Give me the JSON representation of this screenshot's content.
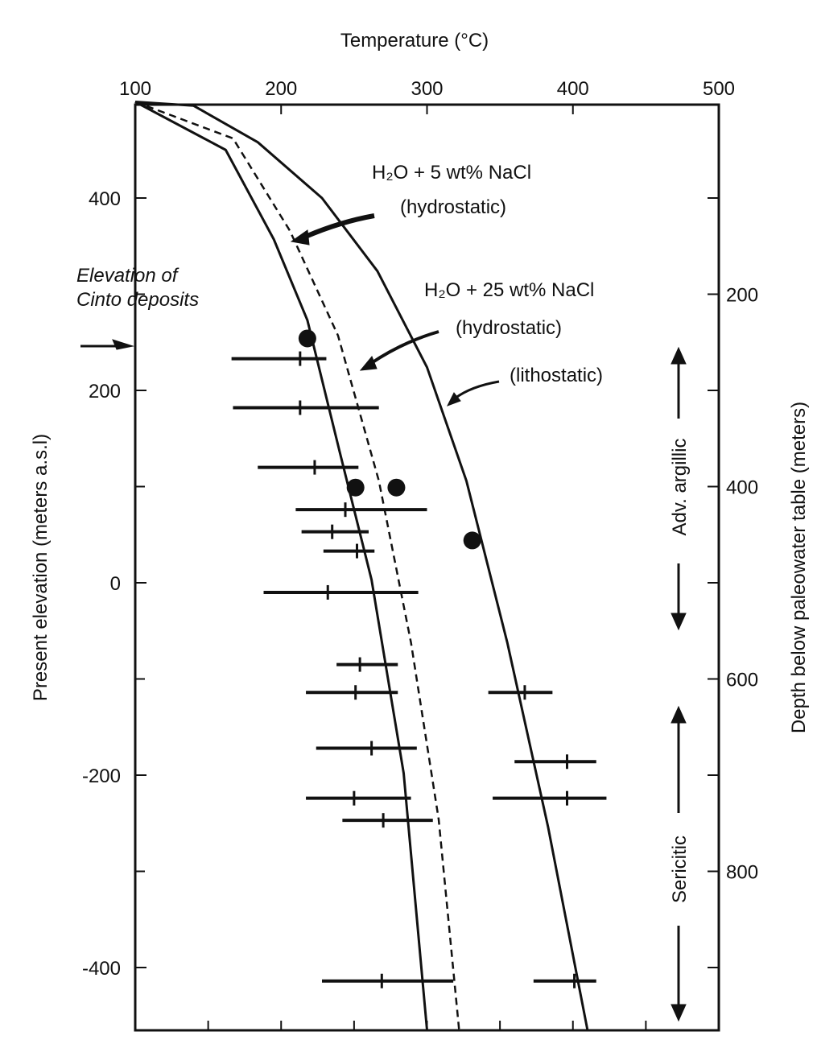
{
  "chart_data": {
    "type": "line",
    "title": "Temperature (°C)",
    "xlabel": "Temperature (°C)",
    "ylabel": "Present elevation (meters a.s.l)",
    "y2label": "Depth below paleowater table (meters)",
    "xlim": [
      100,
      500
    ],
    "ylim": [
      -465,
      500
    ],
    "xticks": [
      100,
      200,
      300,
      400,
      500
    ],
    "yticks": [
      400,
      200,
      0,
      -200,
      -400
    ],
    "y2ticks": [
      200,
      400,
      600,
      800
    ],
    "series": [
      {
        "name": "H2O + 5 wt% NaCl (hydrostatic)",
        "style": "solid",
        "points": [
          [
            100,
            500
          ],
          [
            162,
            450
          ],
          [
            195,
            357
          ],
          [
            218,
            273
          ],
          [
            240,
            137
          ],
          [
            262,
            3
          ],
          [
            284,
            -198
          ],
          [
            300,
            -465
          ]
        ]
      },
      {
        "name": "H2O + 25 wt% NaCl (hydrostatic)",
        "style": "dashed",
        "points": [
          [
            100,
            500
          ],
          [
            167,
            462
          ],
          [
            206,
            366
          ],
          [
            239,
            257
          ],
          [
            267,
            106
          ],
          [
            289,
            -62
          ],
          [
            308,
            -246
          ],
          [
            322,
            -465
          ]
        ]
      },
      {
        "name": "(lithostatic)",
        "style": "solid",
        "points": [
          [
            100,
            500
          ],
          [
            140,
            496
          ],
          [
            184,
            458
          ],
          [
            228,
            400
          ],
          [
            266,
            324
          ],
          [
            300,
            224
          ],
          [
            327,
            106
          ],
          [
            355,
            -62
          ],
          [
            383,
            -254
          ],
          [
            410,
            -465
          ]
        ]
      }
    ],
    "dots": [
      [
        218,
        254
      ],
      [
        251,
        99
      ],
      [
        279,
        99
      ],
      [
        331,
        44
      ]
    ],
    "error_bars": [
      {
        "y": 233,
        "min": 166,
        "max": 231,
        "mean": 213
      },
      {
        "y": 182,
        "min": 167,
        "max": 267,
        "mean": 213
      },
      {
        "y": 120,
        "min": 184,
        "max": 253,
        "mean": 223
      },
      {
        "y": 76,
        "min": 210,
        "max": 300,
        "mean": 244
      },
      {
        "y": 53,
        "min": 214,
        "max": 260,
        "mean": 235
      },
      {
        "y": 33,
        "min": 229,
        "max": 264,
        "mean": 252
      },
      {
        "y": -10,
        "min": 188,
        "max": 294,
        "mean": 232
      },
      {
        "y": -85,
        "min": 238,
        "max": 280,
        "mean": 254
      },
      {
        "y": -114,
        "min": 217,
        "max": 280,
        "mean": 251
      },
      {
        "y": -114,
        "min": 342,
        "max": 386,
        "mean": 367
      },
      {
        "y": -172,
        "min": 224,
        "max": 293,
        "mean": 262
      },
      {
        "y": -186,
        "min": 360,
        "max": 416,
        "mean": 396
      },
      {
        "y": -224,
        "min": 217,
        "max": 289,
        "mean": 250
      },
      {
        "y": -224,
        "min": 345,
        "max": 423,
        "mean": 396
      },
      {
        "y": -247,
        "min": 242,
        "max": 304,
        "mean": 270
      },
      {
        "y": -414,
        "min": 228,
        "max": 318,
        "mean": 269
      },
      {
        "y": -414,
        "min": 373,
        "max": 416,
        "mean": 401
      }
    ],
    "annotations": {
      "nacl5": "H₂O + 5 wt% NaCl",
      "hydro1": "(hydrostatic)",
      "nacl25": "H₂O + 25 wt% NaCl",
      "hydro2": "(hydrostatic)",
      "litho": "(lithostatic)",
      "cinto1": "Elevation of",
      "cinto2": "Cinto deposits",
      "argillic": "Adv. argillic",
      "sericitic": "Sericitic"
    }
  }
}
